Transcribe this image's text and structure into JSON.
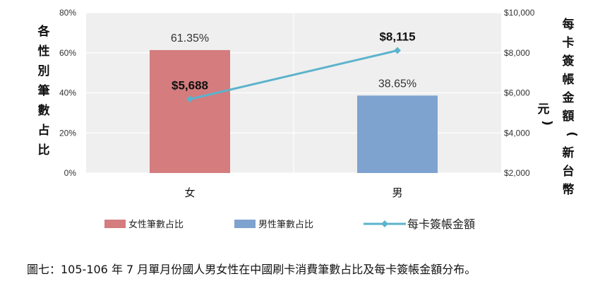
{
  "colors": {
    "female_bar": "#D47C7E",
    "male_bar": "#7FA3CF",
    "line": "#5BB3CC",
    "plot_bg": "#EFEFEF",
    "grid": "#FFFFFF",
    "axis_text": "#333333"
  },
  "chart_data": {
    "type": "bar",
    "categories": [
      "女",
      "男"
    ],
    "ylabel": "各性別筆數占比",
    "y2label": "每卡簽帳金額(新台幣元)",
    "ylim": [
      0,
      80
    ],
    "y2lim": [
      2000,
      10000
    ],
    "yticks": [
      "0%",
      "20%",
      "40%",
      "60%",
      "80%"
    ],
    "y2ticks": [
      "$2,000",
      "$4,000",
      "$6,000",
      "$8,000",
      "$10,000"
    ],
    "grid": true,
    "legend_position": "bottom",
    "series": [
      {
        "name": "女性筆數占比",
        "kind": "bar",
        "values": [
          61.35,
          null
        ],
        "labels": [
          "61.35%",
          ""
        ]
      },
      {
        "name": "男性筆數占比",
        "kind": "bar",
        "values": [
          null,
          38.65
        ],
        "labels": [
          "",
          "38.65%"
        ]
      },
      {
        "name": "每卡簽帳金額",
        "kind": "line",
        "axis": "right",
        "values": [
          5688,
          8115
        ],
        "labels": [
          "$5,688",
          "$8,115"
        ]
      }
    ]
  },
  "caption": "圖七：105-106 年 7 月單月份國人男女性在中國刷卡消費筆數占比及每卡簽帳金額分布。"
}
